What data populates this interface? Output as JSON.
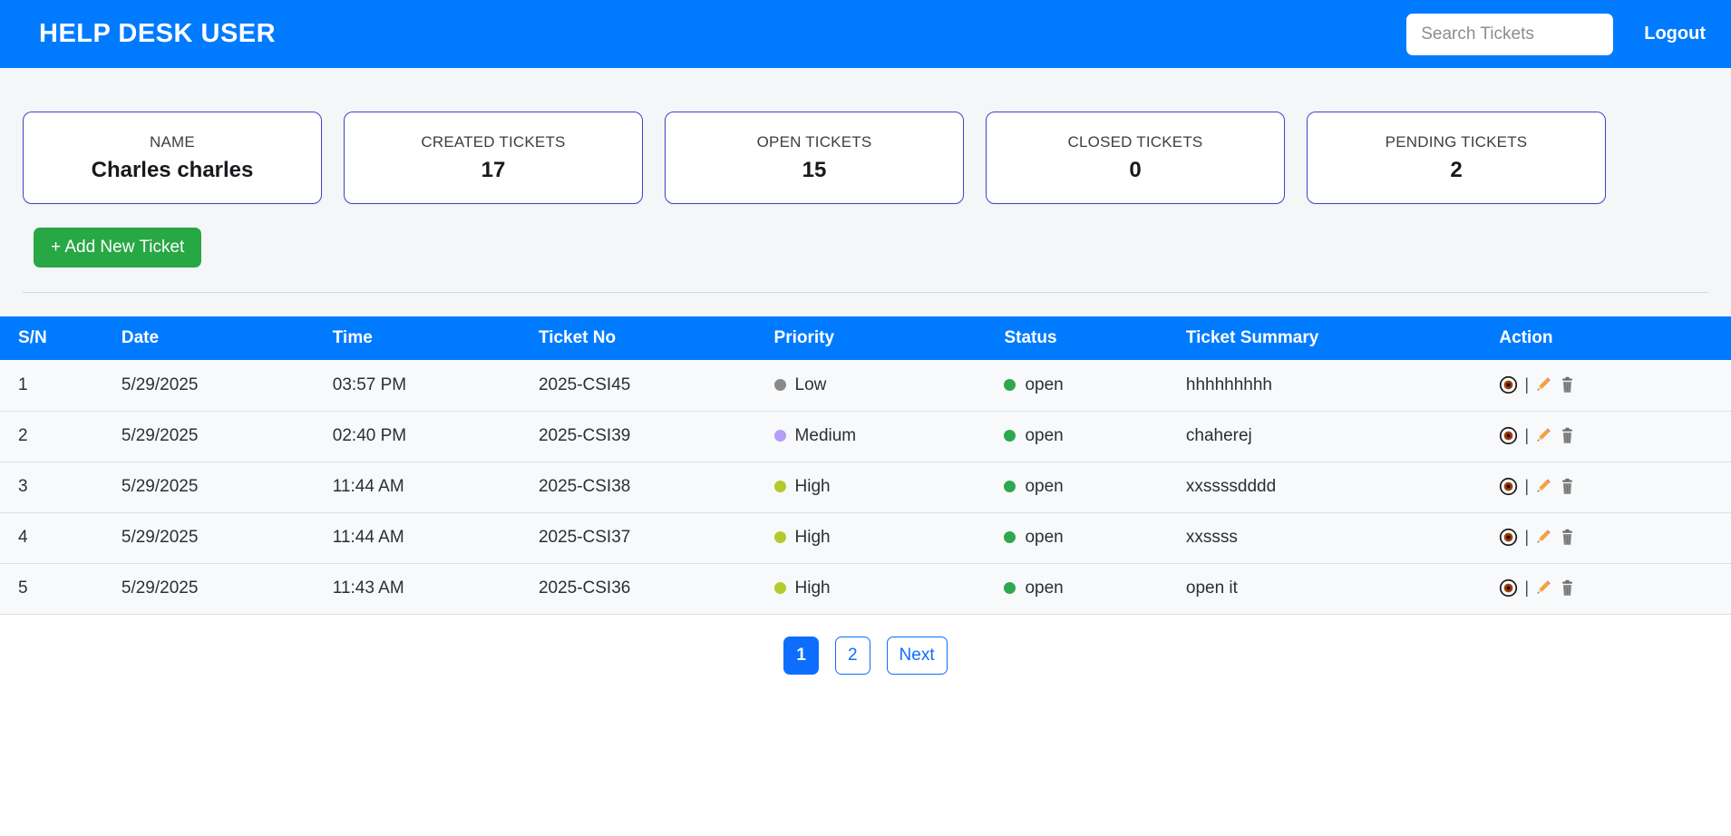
{
  "header": {
    "title": "HELP DESK USER",
    "search_placeholder": "Search Tickets",
    "logout_label": "Logout"
  },
  "stats": [
    {
      "label": "NAME",
      "value": "Charles charles"
    },
    {
      "label": "CREATED TICKETS",
      "value": "17"
    },
    {
      "label": "OPEN TICKETS",
      "value": "15"
    },
    {
      "label": "CLOSED TICKETS",
      "value": "0"
    },
    {
      "label": "PENDING TICKETS",
      "value": "2"
    }
  ],
  "actions": {
    "add_ticket_label": "+ Add New Ticket"
  },
  "table": {
    "columns": [
      "S/N",
      "Date",
      "Time",
      "Ticket No",
      "Priority",
      "Status",
      "Ticket Summary",
      "Action"
    ],
    "action_icons": [
      "view-eye-icon",
      "edit-pencil-icon",
      "delete-trash-icon"
    ],
    "action_separator": "|",
    "rows": [
      {
        "sn": "1",
        "date": "5/29/2025",
        "time": "03:57 PM",
        "ticket_no": "2025-CSI45",
        "priority": "Low",
        "priority_color": "#8a8a8a",
        "status": "open",
        "status_color": "#2fa84f",
        "summary": "hhhhhhhhh"
      },
      {
        "sn": "2",
        "date": "5/29/2025",
        "time": "02:40 PM",
        "ticket_no": "2025-CSI39",
        "priority": "Medium",
        "priority_color": "#b49df6",
        "status": "open",
        "status_color": "#2fa84f",
        "summary": "chaherej"
      },
      {
        "sn": "3",
        "date": "5/29/2025",
        "time": "11:44 AM",
        "ticket_no": "2025-CSI38",
        "priority": "High",
        "priority_color": "#b4c92e",
        "status": "open",
        "status_color": "#2fa84f",
        "summary": "xxssssdddd"
      },
      {
        "sn": "4",
        "date": "5/29/2025",
        "time": "11:44 AM",
        "ticket_no": "2025-CSI37",
        "priority": "High",
        "priority_color": "#b4c92e",
        "status": "open",
        "status_color": "#2fa84f",
        "summary": "xxssss"
      },
      {
        "sn": "5",
        "date": "5/29/2025",
        "time": "11:43 AM",
        "ticket_no": "2025-CSI36",
        "priority": "High",
        "priority_color": "#b4c92e",
        "status": "open",
        "status_color": "#2fa84f",
        "summary": "open it"
      }
    ]
  },
  "pagination": {
    "pages": [
      "1",
      "2"
    ],
    "active_page": "1",
    "next_label": "Next"
  },
  "colors": {
    "header_blue": "#007bff",
    "table_header_blue": "#007bff",
    "add_button_green": "#28a745",
    "pagination_blue": "#0d6efd",
    "card_border": "#4242c8",
    "section_background": "#f5f6f7"
  }
}
